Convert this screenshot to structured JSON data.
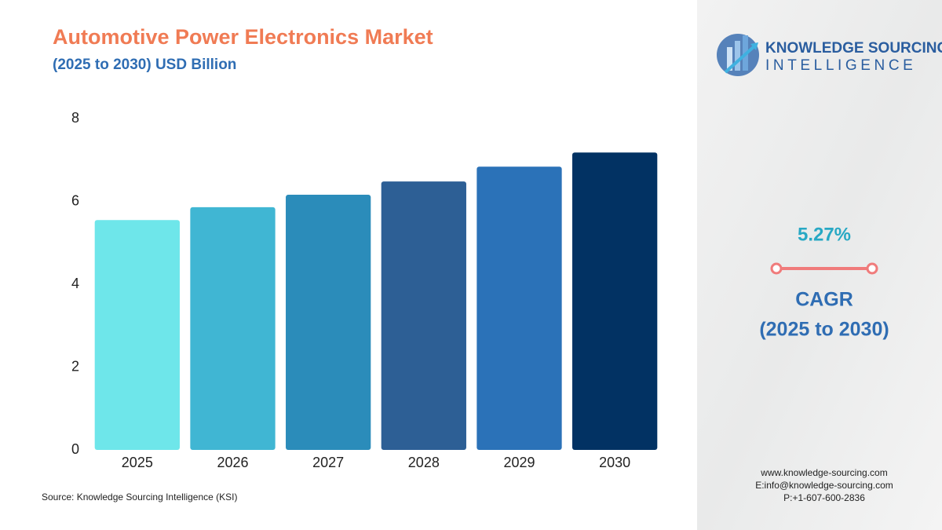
{
  "chart_data": {
    "type": "bar",
    "title": "Automotive Power Electronics Market",
    "subtitle": "(2025 to 2030) USD Billion",
    "categories": [
      "2025",
      "2026",
      "2027",
      "2028",
      "2029",
      "2030"
    ],
    "values": [
      5.55,
      5.86,
      6.16,
      6.48,
      6.84,
      7.18
    ],
    "colors": [
      "#6ee6ea",
      "#40b6d3",
      "#2b8cba",
      "#2d5f95",
      "#2b72b8",
      "#023263"
    ],
    "ylim": [
      0,
      8
    ],
    "yticks": [
      0,
      2,
      4,
      6,
      8
    ],
    "grid": false,
    "source": "Source: Knowledge Sourcing Intelligence (KSI)"
  },
  "side_panel": {
    "logo_line1": "KNOWLEDGE SOURCING",
    "logo_line2": "INTELLIGENCE",
    "cagr_value": "5.27%",
    "cagr_label": "CAGR",
    "cagr_period": "(2025 to 2030)",
    "website": "www.knowledge-sourcing.com",
    "email": "E:info@knowledge-sourcing.com",
    "phone": "P:+1-607-600-2836"
  }
}
